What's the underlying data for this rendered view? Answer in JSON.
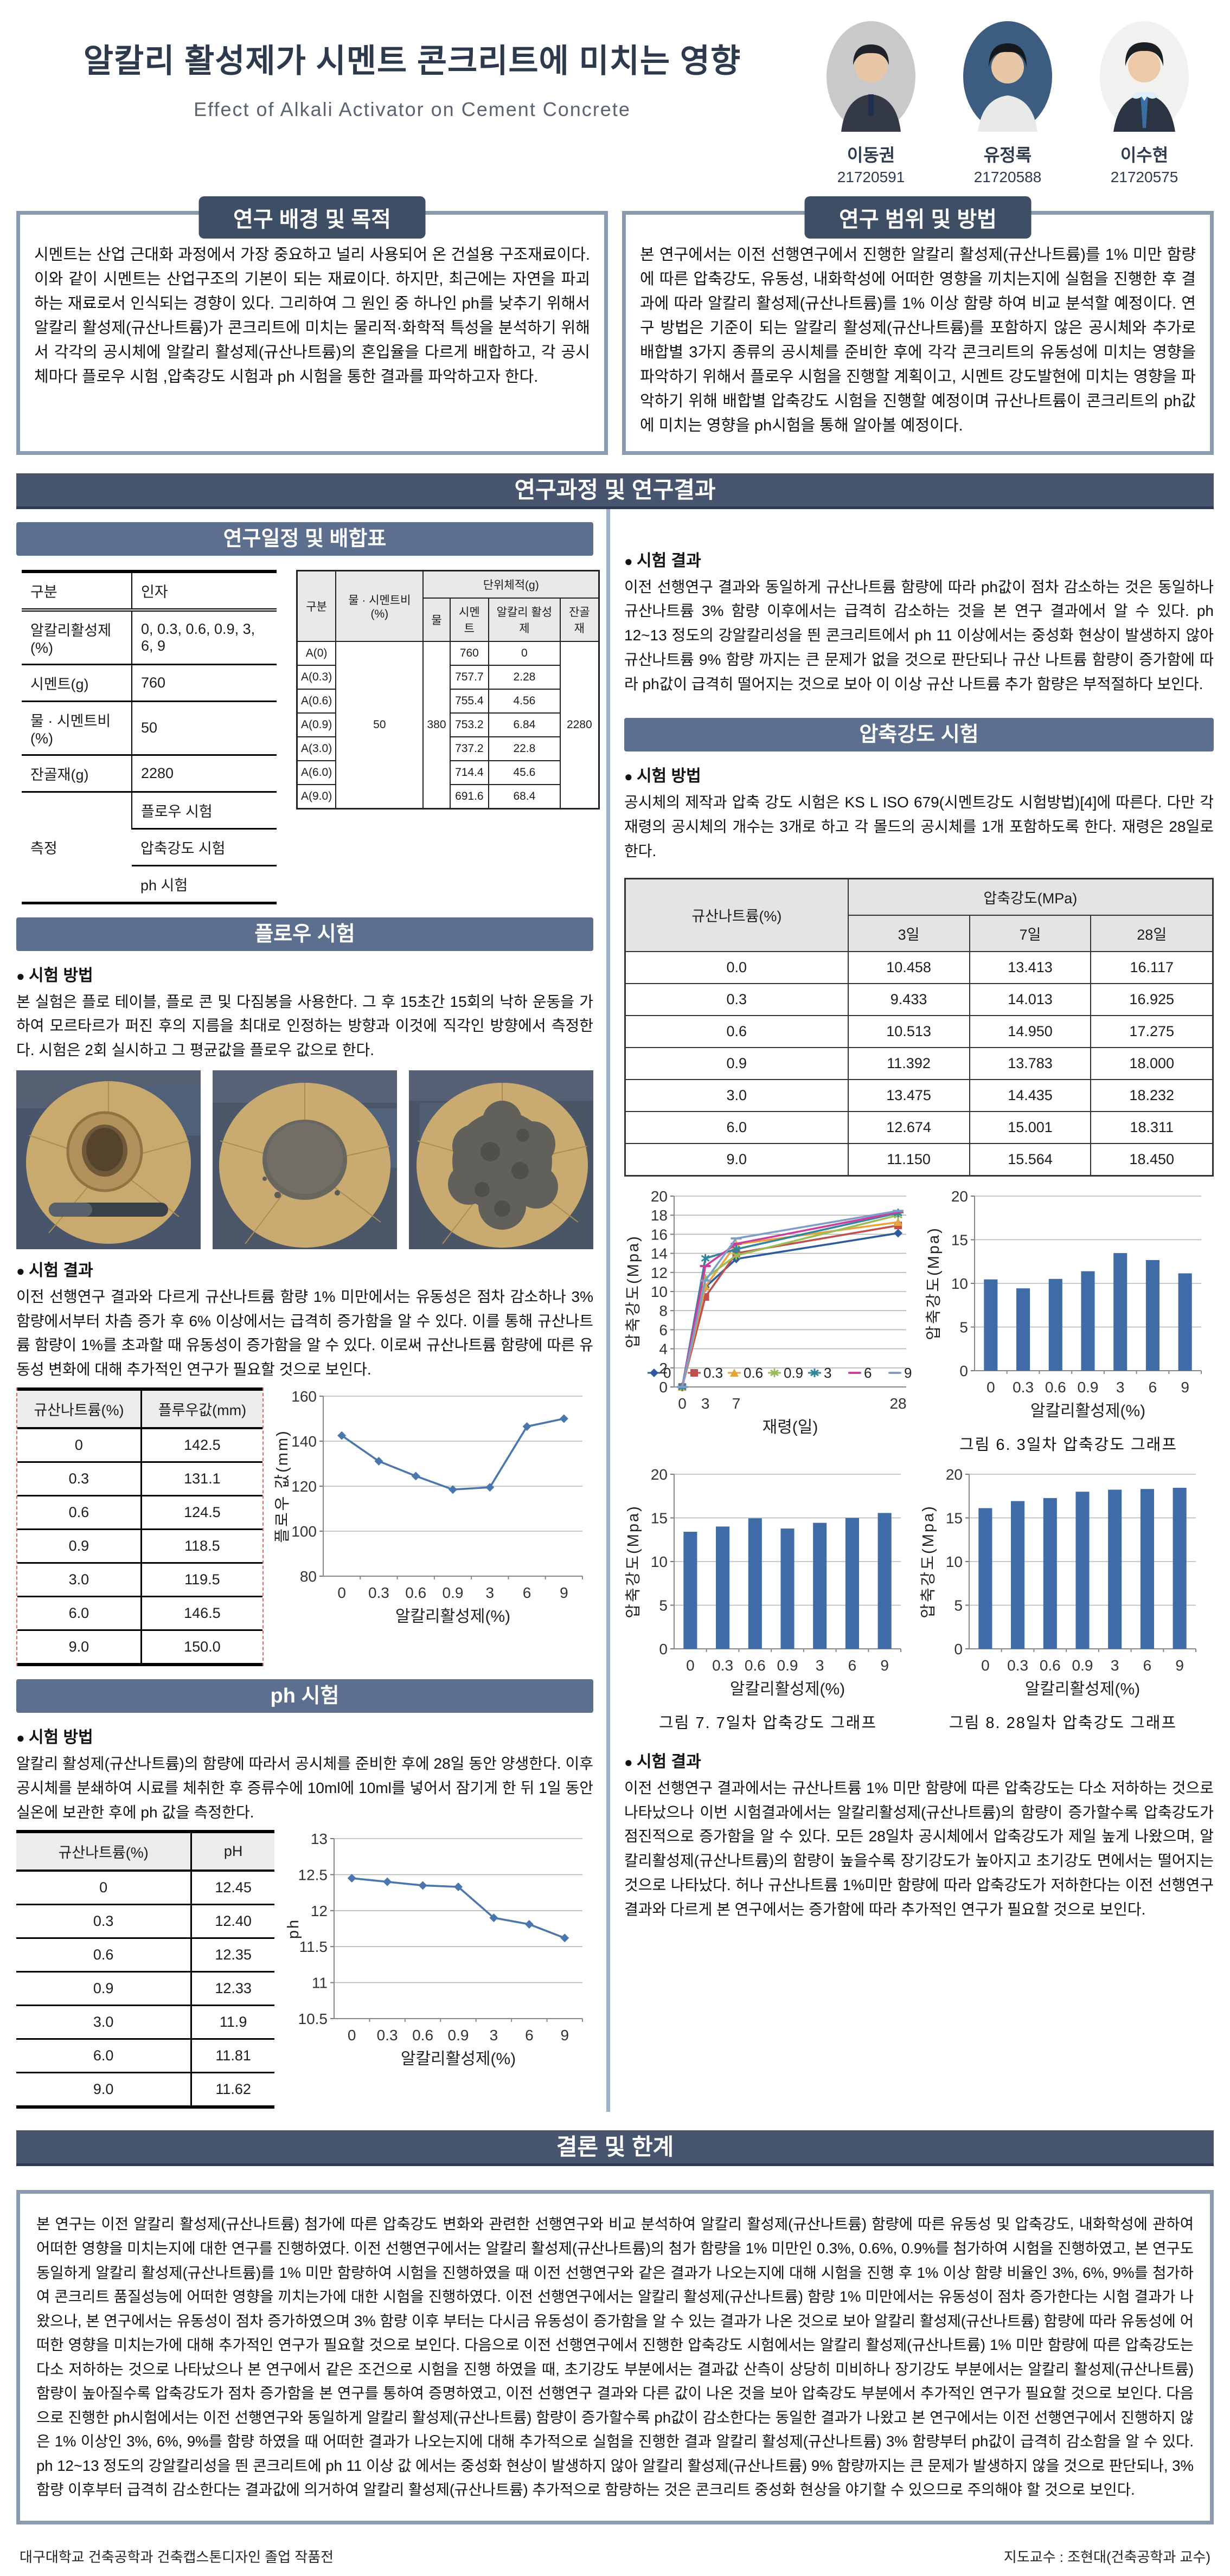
{
  "poster": {
    "title": "알칼리 활성제가 시멘트 콘크리트에 미치는 영향",
    "subtitle": "Effect of Alkali Activator on Cement Concrete",
    "authors": [
      {
        "name": "이동권",
        "id": "21720591"
      },
      {
        "name": "유정록",
        "id": "21720588"
      },
      {
        "name": "이수현",
        "id": "21720575"
      }
    ]
  },
  "sections": {
    "background": {
      "title": "연구 배경 및 목적",
      "body": "시멘트는 산업 근대화 과정에서 가장 중요하고 널리 사용되어 온 건설용 구조재료이다. 이와 같이 시멘트는 산업구조의 기본이 되는 재료이다. 하지만, 최근에는 자연을 파괴하는 재료로서 인식되는 경향이 있다. 그리하여 그 원인 중 하나인 ph를 낮추기 위해서 알칼리 활성제(규산나트륨)가 콘크리트에 미치는 물리적·화학적 특성을 분석하기 위해서 각각의 공시체에 알칼리 활성제(규산나트륨)의 혼입율을 다르게 배합하고, 각 공시체마다 플로우 시험 ,압축강도 시험과 ph 시험을 통한 결과를 파악하고자 한다."
    },
    "scope": {
      "title": "연구 범위 및 방법",
      "body": "본 연구에서는 이전 선행연구에서 진행한 알칼리 활성제(규산나트륨)를 1% 미만 함량에 따른 압축강도, 유동성, 내화학성에 어떠한 영향을 끼치는지에 실험을 진행한 후 결과에 따라 알칼리 활성제(규산나트륨)를 1% 이상 함량 하여 비교 분석할 예정이다. 연구 방법은 기준이 되는 알칼리 활성제(규산나트륨)를 포함하지 않은 공시체와 추가로 배합별 3가지 종류의 공시체를 준비한 후에 각각 콘크리트의 유동성에 미치는 영향을 파악하기 위해서  플로우 시험을 진행할 계획이고, 시멘트 강도발현에 미치는 영향을 파악하기 위해 배합별 압축강도 시험을 진행할 예정이며 규산나트륨이 콘크리트의 ph값에 미치는 영향을 ph시험을 통해 알아볼 예정이다."
    },
    "process_banner": "연구과정 및 연구결과",
    "schedule": {
      "title": "연구일정 및 배합표"
    },
    "flow": {
      "title": "플로우 시험",
      "method_label": "시험 방법",
      "method": "본 실험은 플로 테이블, 플로 콘 및 다짐봉을 사용한다. 그 후 15초간 15회의 낙하 운동을 가하여 모르타르가 퍼진 후의 지름을 최대로 인정하는 방향과 이것에 직각인 방향에서 측정한다. 시험은 2회 실시하고 그 평균값을 플로우 값으로 한다.",
      "result_label": "시험 결과",
      "result": "이전 선행연구 결과와 다르게 규산나트륨 함량 1% 미만에서는 유동성은 점차 감소하나 3% 함량에서부터 차츰 증가 후 6% 이상에서는 급격히 증가함을 알 수 있다. 이를 통해 규산나트륨 함량이 1%를 초과할 때 유동성이 증가함을 알 수 있다. 이로써 규산나트륨 함량에 따른 유동성 변화에 대해 추가적인 연구가 필요할 것으로 보인다."
    },
    "ph": {
      "title": "ph 시험",
      "method_label": "시험 방법",
      "method": "알칼리 활성제(규산나트륨)의 함량에 따라서 공시체를 준비한 후에 28일 동안 양생한다. 이후 공시체를 분쇄하여 시료를 체취한 후 증류수에 10ml에 10ml를 넣어서 잠기게 한 뒤 1일 동안 실온에 보관한 후에 ph 값을 측정한다.",
      "result_label": "시험 결과",
      "result": "이전 선행연구 결과와 동일하게 규산나트륨 함량에 따라 ph값이 점차 감소하는 것은 동일하나 규산나트륨 3% 함량 이후에서는 급격히 감소하는 것을 본 연구 결과에서 알 수 있다. ph 12~13 정도의 강알칼리성을 띈 콘크리트에서 ph 11 이상에서는 중성화 현상이 발생하지 않아 규산나트륨 9% 함량 까지는 큰 문제가 없을 것으로 판단되나 규산 나트륨 함량이 증가함에 따라 ph값이 급격히 떨어지는 것으로 보아 이 이상 규산 나트륨 추가 함량은 부적절하다 보인다."
    },
    "compressive": {
      "title": "압축강도 시험",
      "method_label": "시험 방법",
      "method": "공시체의 제작과 압축 강도 시험은 KS L ISO 679(시멘트강도 시험방법)[4]에 따른다. 다만 각 재령의 공시체의 개수는 3개로 하고 각 몰드의 공시체를 1개 포함하도록 한다. 재령은 28일로 한다.",
      "result_label": "시험 결과",
      "result": "이전 선행연구 결과에서는 규산나트륨 1% 미만 함량에 따른 압축강도는 다소 저하하는 것으로 나타났으나 이번 시험결과에서는 알칼리활성제(규산나트륨)의 함량이 증가할수록 압축강도가 점진적으로 증가함을 알 수 있다. 모든 28일차 공시체에서 압축강도가 제일 높게 나왔으며,  알칼리활성제(규산나트륨)의 함량이 높을수록 장기강도가 높아지고 초기강도 면에서는 떨어지는 것으로 나타났다. 허나 규산나트륨 1%미만 함량에 따라 압축강도가 저하한다는 이전 선행연구 결과와 다르게 본 연구에서는 증가함에 따라 추가적인 연구가 필요할 것으로 보인다."
    },
    "conclusion": {
      "title": "결론 및 한계",
      "body": "본 연구는 이전 알칼리 활성제(규산나트륨) 첨가에 따른 압축강도 변화와 관련한 선행연구와 비교 분석하여 알칼리 활성제(규산나트륨) 함량에 따른 유동성 및 압축강도, 내화학성에 관하여 어떠한 영향을 미치는지에 대한 연구를 진행하였다. 이전 선행연구에서는 알칼리 활성제(규산나트륨)의 첨가 함량을 1% 미만인 0.3%, 0.6%, 0.9%를 첨가하여 시험을 진행하였고, 본 연구도 동일하게 알칼리 활성제(규산나트륨)를 1% 미만 함량하여 시험을 진행하였을 때 이전 선행연구와 같은 결과가 나오는지에 대해 시험을 진행 후 1% 이상 함량 비율인 3%, 6%, 9%를 첨가하여 콘크리트 품질성능에 어떠한 영향을 끼치는가에 대한 시험을 진행하였다. 이전 선행연구에서는 알칼리 활성제(규산나트륨) 함량 1% 미만에서는 유동성이 점차 증가한다는 시험 결과가 나왔으나, 본 연구에서는 유동성이 점차 증가하였으며 3% 함량 이후 부터는 다시금 유동성이 증가함을 알 수 있는 결과가 나온 것으로 보아 알칼리 활성제(규산나트륨) 함량에 따라 유동성에 어떠한 영향을 미치는가에 대해 추가적인 연구가 필요할 것으로 보인다.  다음으로 이전 선행연구에서 진행한 압축강도 시험에서는 알칼리 활성제(규산나트륨) 1% 미만 함량에 따른 압축강도는 다소 저하하는 것으로 나타났으나 본 연구에서 같은 조건으로 시험을 진행 하였을 때, 초기강도 부분에서는 결과값 산측이 상당히 미비하나 장기강도 부분에서는 알칼리 활성제(규산나트륨) 함량이 높아질수록 압축강도가 점차 증가함을 본 연구를 통하여 증명하였고, 이전 선행연구 결과와 다른 값이 나온 것을 보아 압축강도 부분에서 추가적인 연구가 필요할 것으로 보인다. 다음으로 진행한  ph시험에서는 이전 선행연구와 동일하게 알칼리 활성제(규산나트륨) 함량이 증가할수록 ph값이 감소한다는 동일한 결과가 나왔고 본 연구에서는 이전 선행연구에서 진행하지 않은 1% 이상인 3%, 6%, 9%를 함량 하였을 때 어떠한 결과가 나오는지에 대해 추가적으로 실험을 진행한 결과 알칼리 활성제(규산나트륨) 3% 함량부터 ph값이 급격히 감소함을 알 수 있다. ph 12~13 정도의 강알칼리성을 띈 콘크리트에 ph 11 이상 값 에서는 중성화 현상이 발생하지 않아 알칼리 활성제(규산나트륨) 9% 함량까지는  큰 문제가 발생하지 않을 것으로 판단되나, 3% 함량 이후부터 급격히 감소한다는 결과값에 의거하여 알칼리 활성제(규산나트륨) 추가적으로 함량하는 것은 콘크리트 중성화 현상을 야기할 수 있으므로 주의해야 할 것으로 보인다."
    }
  },
  "tables": {
    "factors": {
      "rows": [
        [
          {
            "t": "구분",
            "h": 1
          },
          {
            "t": "인자",
            "h": 1
          }
        ],
        [
          {
            "t": "알칼리활성제(%)"
          },
          {
            "t": "0, 0.3, 0.6, 0.9, 3, 6, 9"
          }
        ],
        [
          {
            "t": "시멘트(g)"
          },
          {
            "t": "760"
          }
        ],
        [
          {
            "t": "물 · 시멘트비(%)"
          },
          {
            "t": "50"
          }
        ],
        [
          {
            "t": "잔골재(g)"
          },
          {
            "t": "2280"
          }
        ],
        [
          {
            "t": "측정",
            "rs": 3
          },
          {
            "t": "플로우 시험"
          }
        ],
        [
          {
            "t": "압축강도 시험"
          }
        ],
        [
          {
            "t": "ph 시험"
          }
        ]
      ]
    },
    "mix": {
      "rows": [
        [
          {
            "t": "구분",
            "h": 1,
            "rs": 2
          },
          {
            "t": "물 · 시멘트비 (%)",
            "h": 1,
            "rs": 2
          },
          {
            "t": "단위체적(g)",
            "h": 1,
            "cs": 4
          }
        ],
        [
          {
            "t": "물",
            "h": 1
          },
          {
            "t": "시멘트",
            "h": 1
          },
          {
            "t": "알칼리 활성제",
            "h": 1
          },
          {
            "t": "잔골재",
            "h": 1
          }
        ],
        [
          {
            "t": "A(0)"
          },
          {
            "t": "50",
            "rs": 7
          },
          {
            "t": "380",
            "rs": 7
          },
          {
            "t": "760"
          },
          {
            "t": "0"
          },
          {
            "t": "2280",
            "rs": 7
          }
        ],
        [
          {
            "t": "A(0.3)"
          },
          {
            "t": "757.7"
          },
          {
            "t": "2.28"
          }
        ],
        [
          {
            "t": "A(0.6)"
          },
          {
            "t": "755.4"
          },
          {
            "t": "4.56"
          }
        ],
        [
          {
            "t": "A(0.9)"
          },
          {
            "t": "753.2"
          },
          {
            "t": "6.84"
          }
        ],
        [
          {
            "t": "A(3.0)"
          },
          {
            "t": "737.2"
          },
          {
            "t": "22.8"
          }
        ],
        [
          {
            "t": "A(6.0)"
          },
          {
            "t": "714.4"
          },
          {
            "t": "45.6"
          }
        ],
        [
          {
            "t": "A(9.0)"
          },
          {
            "t": "691.6"
          },
          {
            "t": "68.4"
          }
        ]
      ]
    },
    "flow_values": {
      "rows": [
        [
          {
            "t": "규산나트륨(%)",
            "h": 1
          },
          {
            "t": "플루우값(mm)",
            "h": 1
          }
        ],
        [
          {
            "t": "0"
          },
          {
            "t": "142.5"
          }
        ],
        [
          {
            "t": "0.3"
          },
          {
            "t": "131.1"
          }
        ],
        [
          {
            "t": "0.6"
          },
          {
            "t": "124.5"
          }
        ],
        [
          {
            "t": "0.9"
          },
          {
            "t": "118.5"
          }
        ],
        [
          {
            "t": "3.0"
          },
          {
            "t": "119.5"
          }
        ],
        [
          {
            "t": "6.0"
          },
          {
            "t": "146.5"
          }
        ],
        [
          {
            "t": "9.0"
          },
          {
            "t": "150.0"
          }
        ]
      ]
    },
    "ph_values": {
      "rows": [
        [
          {
            "t": "규산나트륨(%)",
            "h": 1
          },
          {
            "t": "pH",
            "h": 1
          }
        ],
        [
          {
            "t": "0"
          },
          {
            "t": "12.45"
          }
        ],
        [
          {
            "t": "0.3"
          },
          {
            "t": "12.40"
          }
        ],
        [
          {
            "t": "0.6"
          },
          {
            "t": "12.35"
          }
        ],
        [
          {
            "t": "0.9"
          },
          {
            "t": "12.33"
          }
        ],
        [
          {
            "t": "3.0"
          },
          {
            "t": "11.9"
          }
        ],
        [
          {
            "t": "6.0"
          },
          {
            "t": "11.81"
          }
        ],
        [
          {
            "t": "9.0"
          },
          {
            "t": "11.62"
          }
        ]
      ]
    },
    "strength": {
      "rows": [
        [
          {
            "t": "규산나트륨(%)",
            "h": 1,
            "rs": 2
          },
          {
            "t": "압축강도(MPa)",
            "h": 1,
            "cs": 3
          }
        ],
        [
          {
            "t": "3일",
            "h": 1
          },
          {
            "t": "7일",
            "h": 1
          },
          {
            "t": "28일",
            "h": 1
          }
        ],
        [
          {
            "t": "0.0"
          },
          {
            "t": "10.458"
          },
          {
            "t": "13.413"
          },
          {
            "t": "16.117"
          }
        ],
        [
          {
            "t": "0.3"
          },
          {
            "t": "9.433"
          },
          {
            "t": "14.013"
          },
          {
            "t": "16.925"
          }
        ],
        [
          {
            "t": "0.6"
          },
          {
            "t": "10.513"
          },
          {
            "t": "14.950"
          },
          {
            "t": "17.275"
          }
        ],
        [
          {
            "t": "0.9"
          },
          {
            "t": "11.392"
          },
          {
            "t": "13.783"
          },
          {
            "t": "18.000"
          }
        ],
        [
          {
            "t": "3.0"
          },
          {
            "t": "13.475"
          },
          {
            "t": "14.435"
          },
          {
            "t": "18.232"
          }
        ],
        [
          {
            "t": "6.0"
          },
          {
            "t": "12.674"
          },
          {
            "t": "15.001"
          },
          {
            "t": "18.311"
          }
        ],
        [
          {
            "t": "9.0"
          },
          {
            "t": "11.150"
          },
          {
            "t": "15.564"
          },
          {
            "t": "18.450"
          }
        ]
      ]
    }
  },
  "chart_data": [
    {
      "id": "flow-line",
      "type": "line",
      "categories": [
        "0",
        "0.3",
        "0.6",
        "0.9",
        "3",
        "6",
        "9"
      ],
      "values": [
        142.5,
        131.1,
        124.5,
        118.5,
        119.5,
        146.5,
        150.0
      ],
      "title": "",
      "xlabel": "알칼리활성제(%)",
      "ylabel": "플로우 값(mm)",
      "ylim": [
        80,
        160
      ],
      "ystep": 20,
      "grid": true,
      "color": "#4a76ae",
      "marker": "diamond"
    },
    {
      "id": "ph-line",
      "type": "line",
      "categories": [
        "0",
        "0.3",
        "0.6",
        "0.9",
        "3",
        "6",
        "9"
      ],
      "values": [
        12.45,
        12.4,
        12.35,
        12.33,
        11.9,
        11.81,
        11.62
      ],
      "title": "",
      "xlabel": "알칼리활성제(%)",
      "ylabel": "ph",
      "ylim": [
        10.5,
        13
      ],
      "ystep": 0.5,
      "grid": true,
      "color": "#4a76ae",
      "marker": "diamond"
    },
    {
      "id": "age-strength-line",
      "type": "line",
      "x": [
        0,
        3,
        7,
        28
      ],
      "series": [
        {
          "name": "0",
          "values": [
            0,
            10.458,
            13.413,
            16.117
          ],
          "color": "#2e5b9f",
          "marker": "diamond"
        },
        {
          "name": "0.3",
          "values": [
            0,
            9.433,
            14.013,
            16.925
          ],
          "color": "#c0504d",
          "marker": "square"
        },
        {
          "name": "0.6",
          "values": [
            0,
            10.513,
            14.95,
            17.275
          ],
          "color": "#e8a33d",
          "marker": "triangle"
        },
        {
          "name": "0.9",
          "values": [
            0,
            11.392,
            13.783,
            18.0
          ],
          "color": "#9bbb59",
          "marker": "star"
        },
        {
          "name": "3",
          "values": [
            0,
            13.475,
            14.435,
            18.232
          ],
          "color": "#31859c",
          "marker": "star"
        },
        {
          "name": "6",
          "values": [
            0,
            12.674,
            15.001,
            18.311
          ],
          "color": "#cc3e9d",
          "marker": "dash"
        },
        {
          "name": "9",
          "values": [
            0,
            11.15,
            15.564,
            18.45
          ],
          "color": "#7f9dc9",
          "marker": "dash"
        }
      ],
      "title": "",
      "xlabel": "재령(일)",
      "ylabel": "압축강도(Mpa)",
      "ylim": [
        0,
        20
      ],
      "ystep": 2,
      "grid": true,
      "legend": "bottom"
    },
    {
      "id": "bar-3day",
      "type": "bar",
      "categories": [
        "0",
        "0.3",
        "0.6",
        "0.9",
        "3",
        "6",
        "9"
      ],
      "values": [
        10.458,
        9.433,
        10.513,
        11.392,
        13.475,
        12.674,
        11.15
      ],
      "title": "",
      "xlabel": "알칼리활성제(%)",
      "ylabel": "압축강도(Mpa)",
      "ylim": [
        0,
        20
      ],
      "ystep": 5,
      "grid": true,
      "color": "#3f6ca6",
      "caption": "그림 6. 3일차 압축강도 그래프"
    },
    {
      "id": "bar-7day",
      "type": "bar",
      "categories": [
        "0",
        "0.3",
        "0.6",
        "0.9",
        "3",
        "6",
        "9"
      ],
      "values": [
        13.413,
        14.013,
        14.95,
        13.783,
        14.435,
        15.001,
        15.564
      ],
      "title": "",
      "xlabel": "알칼리활성제(%)",
      "ylabel": "압축강도(Mpa)",
      "ylim": [
        0,
        20
      ],
      "ystep": 5,
      "grid": true,
      "color": "#3f6ca6",
      "caption": "그림 7. 7일차 압축강도 그래프"
    },
    {
      "id": "bar-28day",
      "type": "bar",
      "categories": [
        "0",
        "0.3",
        "0.6",
        "0.9",
        "3",
        "6",
        "9"
      ],
      "values": [
        16.117,
        16.925,
        17.275,
        18.0,
        18.232,
        18.311,
        18.45
      ],
      "title": "",
      "xlabel": "알칼리활성제(%)",
      "ylabel": "압축강도(Mpa)",
      "ylim": [
        0,
        20
      ],
      "ystep": 5,
      "grid": true,
      "color": "#3f6ca6",
      "caption": "그림 8. 28일차 압축강도 그래프"
    }
  ],
  "footer": {
    "left": "대구대학교 건축공학과 건축캡스톤디자인 졸업 작품전",
    "right": "지도교수 : 조현대(건축공학과 교수)"
  }
}
